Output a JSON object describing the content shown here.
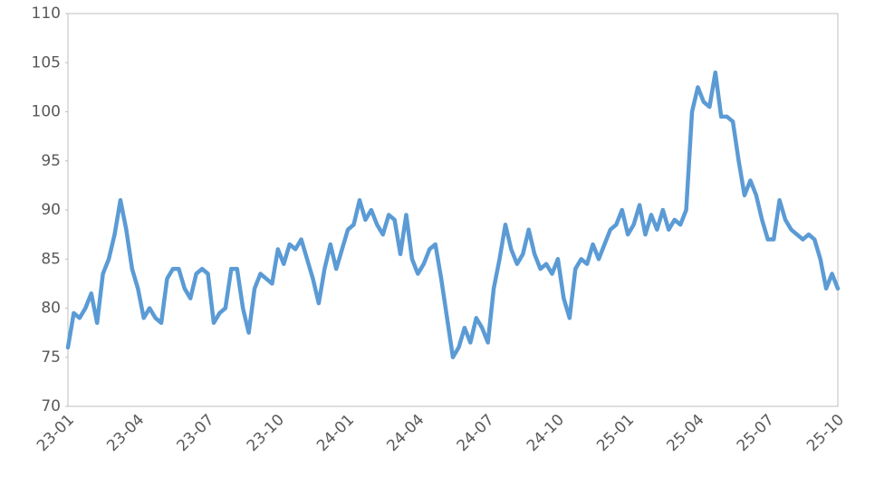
{
  "chart_data": {
    "type": "line",
    "categories": [
      "23-01",
      null,
      null,
      null,
      null,
      null,
      null,
      null,
      null,
      null,
      null,
      null,
      "23-04",
      null,
      null,
      null,
      null,
      null,
      null,
      null,
      null,
      null,
      null,
      null,
      "23-07",
      null,
      null,
      null,
      null,
      null,
      null,
      null,
      null,
      null,
      null,
      null,
      "23-10",
      null,
      null,
      null,
      null,
      null,
      null,
      null,
      null,
      null,
      null,
      null,
      "24-01",
      null,
      null,
      null,
      null,
      null,
      null,
      null,
      null,
      null,
      null,
      null,
      "24-04",
      null,
      null,
      null,
      null,
      null,
      null,
      null,
      null,
      null,
      null,
      null,
      "24-07",
      null,
      null,
      null,
      null,
      null,
      null,
      null,
      null,
      null,
      null,
      null,
      "24-10",
      null,
      null,
      null,
      null,
      null,
      null,
      null,
      null,
      null,
      null,
      null,
      "25-01",
      null,
      null,
      null,
      null,
      null,
      null,
      null,
      null,
      null,
      null,
      null,
      "25-04",
      null,
      null,
      null,
      null,
      null,
      null,
      null,
      null,
      null,
      null,
      null,
      "25-07",
      null,
      null,
      null,
      null,
      null,
      null,
      null,
      null,
      null,
      null,
      null,
      "25-10"
    ],
    "values": [
      76,
      79.5,
      79,
      80,
      81.5,
      78.5,
      83.5,
      85,
      87.5,
      91,
      88,
      84,
      82,
      79,
      80,
      79,
      78.5,
      83,
      84,
      84,
      82,
      81,
      83.5,
      84,
      83.5,
      78.5,
      79.5,
      80,
      84,
      84,
      80,
      77.5,
      82,
      83.5,
      83,
      82.5,
      86,
      84.5,
      86.5,
      86,
      87,
      85,
      83,
      80.5,
      84,
      86.5,
      84,
      86,
      88,
      88.5,
      91,
      89,
      90,
      88.5,
      87.5,
      89.5,
      89,
      85.5,
      89.5,
      85,
      83.5,
      84.5,
      86,
      86.5,
      83,
      79,
      75,
      76,
      78,
      76.5,
      79,
      78,
      76.5,
      82,
      85,
      88.5,
      86,
      84.5,
      85.5,
      88,
      85.5,
      84,
      84.5,
      83.5,
      85,
      81,
      79,
      84,
      85,
      84.5,
      86.5,
      85,
      86.5,
      88,
      88.5,
      90,
      87.5,
      88.5,
      90.5,
      87.5,
      89.5,
      88,
      90,
      88,
      89,
      88.5,
      90,
      100,
      102.5,
      101,
      100.5,
      104,
      99.5,
      99.5,
      99,
      95,
      91.5,
      93,
      91.5,
      89,
      87,
      87,
      91,
      89,
      88,
      87.5,
      87,
      87.5,
      87,
      85,
      82,
      83.5,
      82
    ],
    "color": "#5b9bd5",
    "ylim": [
      70,
      110
    ],
    "yticks": [
      70,
      75,
      80,
      85,
      90,
      95,
      100,
      105,
      110
    ],
    "grid": false
  }
}
